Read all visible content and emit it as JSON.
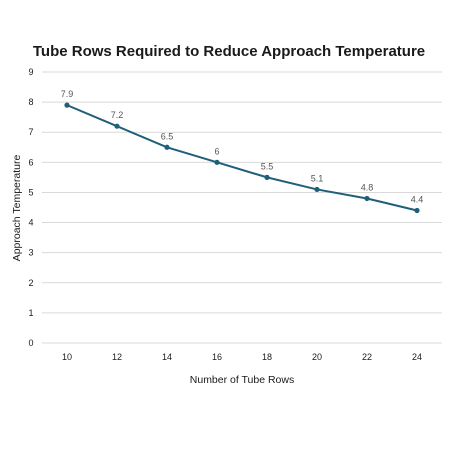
{
  "chart_data": {
    "type": "line",
    "title": "Tube Rows Required to Reduce Approach Temperature",
    "xlabel": "Number of Tube Rows",
    "ylabel": "Approach Temperature",
    "x": [
      "10",
      "12",
      "14",
      "16",
      "18",
      "20",
      "22",
      "24"
    ],
    "series": [
      {
        "values": [
          7.9,
          7.2,
          6.5,
          6,
          5.5,
          5.1,
          4.8,
          4.4
        ],
        "labels": [
          "7.9",
          "7.2",
          "6.5",
          "6",
          "5.5",
          "5.1",
          "4.8",
          "4.4"
        ]
      }
    ],
    "ylim": [
      0,
      9
    ],
    "yticks": [
      "0",
      "1",
      "2",
      "3",
      "4",
      "5",
      "6",
      "7",
      "8",
      "9"
    ],
    "grid": true,
    "legend": "none",
    "colors": {
      "line": "#1f5f7a",
      "grid": "#d9d9d9"
    }
  }
}
